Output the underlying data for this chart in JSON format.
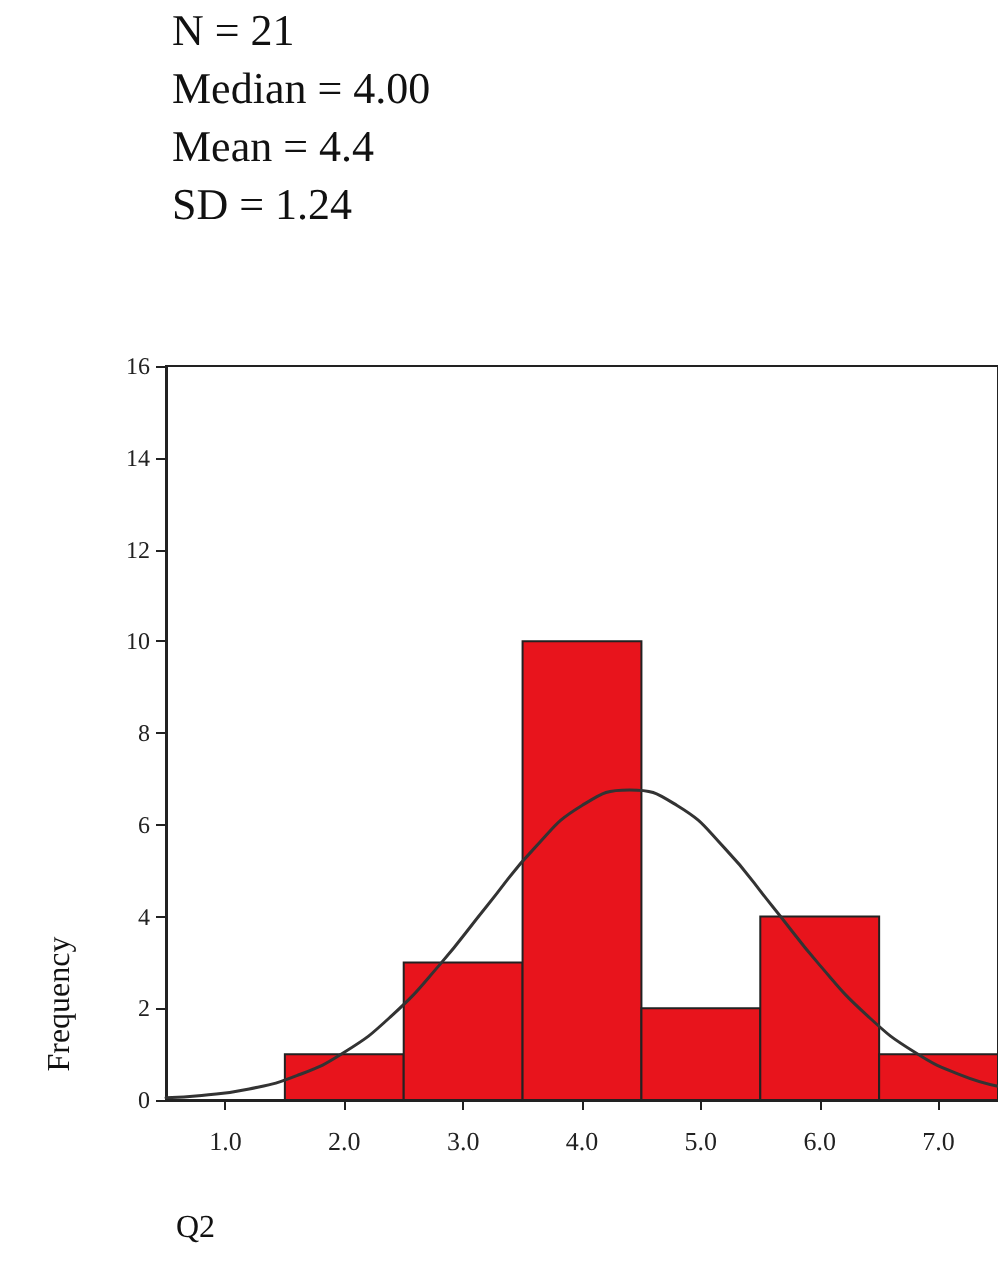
{
  "chart_data": {
    "type": "histogram",
    "annotations": [
      "N = 21",
      "Median = 4.00",
      "Mean = 4.4",
      "SD = 1.24"
    ],
    "xlabel": "Q2",
    "ylabel": "Frequency",
    "bins": [
      1.5,
      2.5,
      3.5,
      4.5,
      5.5,
      6.5,
      7.5
    ],
    "values": [
      1,
      3,
      10,
      2,
      4,
      1
    ],
    "color": "#e8141c",
    "series": [
      {
        "type": "line",
        "color": "#333333",
        "x": [
          0.5,
          0.8,
          1.2,
          1.6,
          2.0,
          2.4,
          2.8,
          3.2,
          3.6,
          4.0,
          4.4,
          4.8,
          5.2,
          5.6,
          6.0,
          6.4,
          6.8,
          7.2,
          7.5
        ],
        "values": [
          0.05,
          0.1,
          0.24,
          0.53,
          1.04,
          1.84,
          2.94,
          4.23,
          5.49,
          6.42,
          6.76,
          6.42,
          5.49,
          4.23,
          2.94,
          1.84,
          1.04,
          0.53,
          0.3
        ]
      }
    ],
    "xlim": [
      0.5,
      7.5
    ],
    "xticks": [
      {
        "value": 1,
        "label": "1.0"
      },
      {
        "value": 2,
        "label": "2.0"
      },
      {
        "value": 3,
        "label": "3.0"
      },
      {
        "value": 4,
        "label": "4.0"
      },
      {
        "value": 5,
        "label": "5.0"
      },
      {
        "value": 6,
        "label": "6.0"
      },
      {
        "value": 7,
        "label": "7.0"
      }
    ],
    "ylim": [
      0,
      16
    ],
    "yticks": [
      0,
      2,
      4,
      6,
      8,
      10,
      12,
      14,
      16
    ],
    "grid": false,
    "marker": "none",
    "line_style": "solid"
  }
}
